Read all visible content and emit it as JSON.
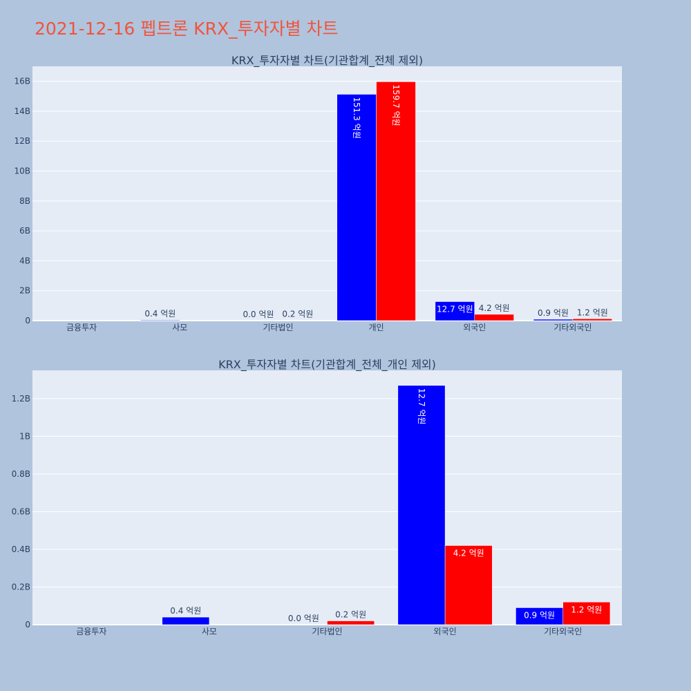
{
  "page_title": "2021-12-16 펩트론 KRX_투자자별 차트",
  "colors": {
    "background": "#b0c4de",
    "plot_bg": "#e5ecf6",
    "series_1": "#0000ff",
    "series_2": "#ff0000",
    "title": "#ef553b",
    "text": "#2a3f5f"
  },
  "chart_data": [
    {
      "type": "bar",
      "title": "KRX_투자자별 차트(기관합계_전체 제외)",
      "categories": [
        "금융투자",
        "사모",
        "기타법인",
        "개인",
        "외국인",
        "기타외국인"
      ],
      "ylim": [
        0,
        17000000000
      ],
      "yticks": [
        0,
        2000000000,
        4000000000,
        6000000000,
        8000000000,
        10000000000,
        12000000000,
        14000000000,
        16000000000
      ],
      "yticklabels": [
        "0",
        "2B",
        "4B",
        "6B",
        "8B",
        "10B",
        "12B",
        "14B",
        "16B"
      ],
      "grid": true,
      "series": [
        {
          "color": "#0000ff",
          "values": [
            0,
            40000000,
            0,
            15130000000,
            1270000000,
            90000000
          ],
          "labels": [
            "",
            "0.4 억원",
            "0.0 억원",
            "151.3 억원",
            "12.7 억원",
            "0.9 억원"
          ]
        },
        {
          "color": "#ff0000",
          "values": [
            0,
            0,
            20000000,
            15970000000,
            420000000,
            120000000
          ],
          "labels": [
            "",
            "",
            "0.2 억원",
            "159.7 억원",
            "4.2 억원",
            "1.2 억원"
          ]
        }
      ]
    },
    {
      "type": "bar",
      "title": "KRX_투자자별 차트(기관합계_전체_개인 제외)",
      "categories": [
        "금융투자",
        "사모",
        "기타법인",
        "외국인",
        "기타외국인"
      ],
      "ylim": [
        0,
        1350000000
      ],
      "yticks": [
        0,
        200000000,
        400000000,
        600000000,
        800000000,
        1000000000,
        1200000000
      ],
      "yticklabels": [
        "0",
        "0.2B",
        "0.4B",
        "0.6B",
        "0.8B",
        "1B",
        "1.2B"
      ],
      "grid": true,
      "series": [
        {
          "color": "#0000ff",
          "values": [
            0,
            40000000,
            0,
            1270000000,
            90000000
          ],
          "labels": [
            "",
            "0.4 억원",
            "0.0 억원",
            "12.7 억원",
            "0.9 억원"
          ]
        },
        {
          "color": "#ff0000",
          "values": [
            0,
            0,
            20000000,
            420000000,
            120000000
          ],
          "labels": [
            "",
            "",
            "0.2 억원",
            "4.2 억원",
            "1.2 억원"
          ]
        }
      ]
    }
  ]
}
